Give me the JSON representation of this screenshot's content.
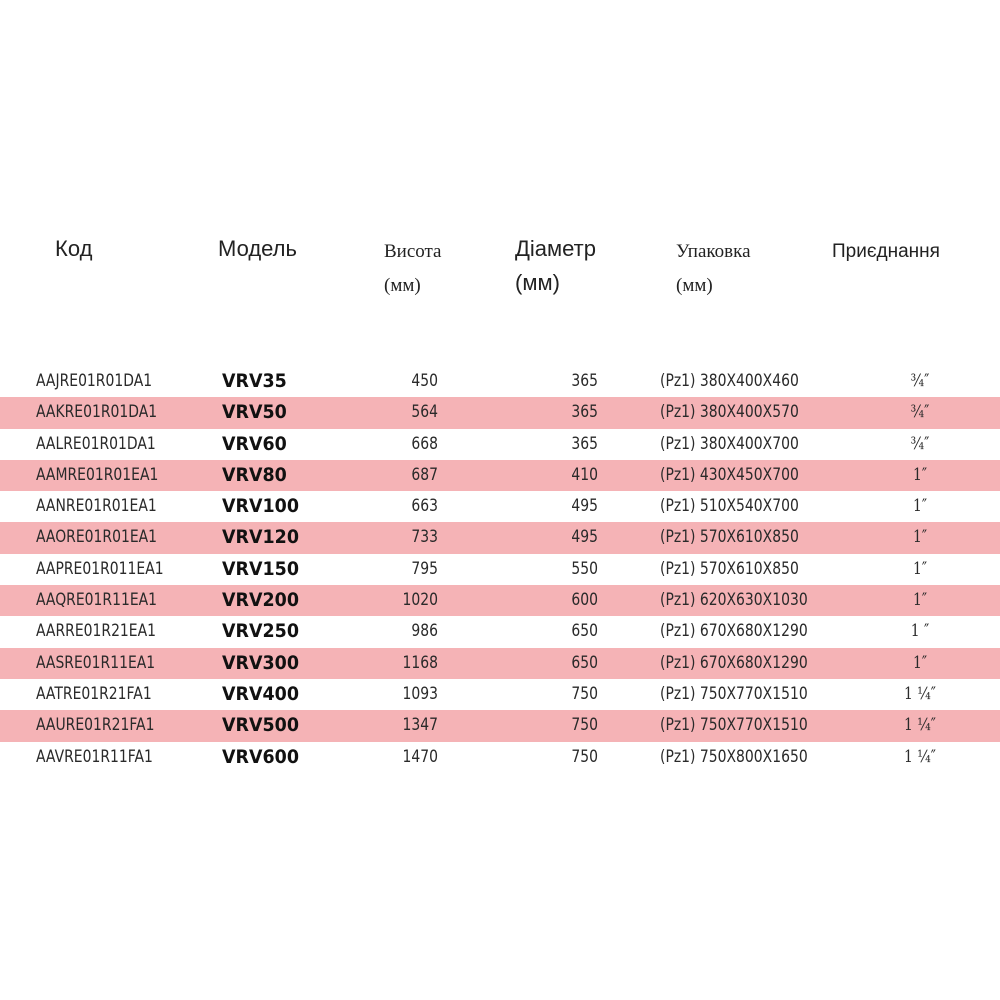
{
  "headers": {
    "code": "Код",
    "model": "Модель",
    "height": [
      "Висота",
      "(мм)"
    ],
    "diameter": [
      "Діаметр",
      "(мм)"
    ],
    "packaging": [
      "Упаковка",
      "(мм)"
    ],
    "connection": "Приєднання"
  },
  "rows": [
    {
      "code": "AAJRE01R01DA1",
      "model": "VRV35",
      "height": "450",
      "diameter": "365",
      "packaging": "(Pz1) 380X400X460",
      "connection": "¾″"
    },
    {
      "code": "AAKRE01R01DA1",
      "model": "VRV50",
      "height": "564",
      "diameter": "365",
      "packaging": "(Pz1) 380X400X570",
      "connection": "¾″"
    },
    {
      "code": "AALRE01R01DA1",
      "model": "VRV60",
      "height": "668",
      "diameter": "365",
      "packaging": "(Pz1) 380X400X700",
      "connection": "¾″"
    },
    {
      "code": "AAMRE01R01EA1",
      "model": "VRV80",
      "height": "687",
      "diameter": "410",
      "packaging": "(Pz1) 430X450X700",
      "connection": "1″"
    },
    {
      "code": "AANRE01R01EA1",
      "model": "VRV100",
      "height": "663",
      "diameter": "495",
      "packaging": "(Pz1) 510X540X700",
      "connection": "1″"
    },
    {
      "code": "AAORE01R01EA1",
      "model": "VRV120",
      "height": "733",
      "diameter": "495",
      "packaging": "(Pz1) 570X610X850",
      "connection": "1″"
    },
    {
      "code": "AAPRE01R011EA1",
      "model": "VRV150",
      "height": "795",
      "diameter": "550",
      "packaging": "(Pz1) 570X610X850",
      "connection": "1″"
    },
    {
      "code": "AAQRE01R11EA1",
      "model": "VRV200",
      "height": "1020",
      "diameter": "600",
      "packaging": "(Pz1) 620X630X1030",
      "connection": "1″"
    },
    {
      "code": "AARRE01R21EA1",
      "model": "VRV250",
      "height": "986",
      "diameter": "650",
      "packaging": "(Pz1) 670X680X1290",
      "connection": "1 ″"
    },
    {
      "code": "AASRE01R11EA1",
      "model": "VRV300",
      "height": "1168",
      "diameter": "650",
      "packaging": "(Pz1) 670X680X1290",
      "connection": "1″"
    },
    {
      "code": "AATRE01R21FA1",
      "model": "VRV400",
      "height": "1093",
      "diameter": "750",
      "packaging": "(Pz1) 750X770X1510",
      "connection": "1 ¼″"
    },
    {
      "code": "AAURE01R21FA1",
      "model": "VRV500",
      "height": "1347",
      "diameter": "750",
      "packaging": "(Pz1) 750X770X1510",
      "connection": "1 ¼″"
    },
    {
      "code": "AAVRE01R11FA1",
      "model": "VRV600",
      "height": "1470",
      "diameter": "750",
      "packaging": "(Pz1) 750X800X1650",
      "connection": "1 ¼″"
    }
  ],
  "colors": {
    "shaded_row": "#f5b3b6",
    "text": "#2a2a2a"
  }
}
